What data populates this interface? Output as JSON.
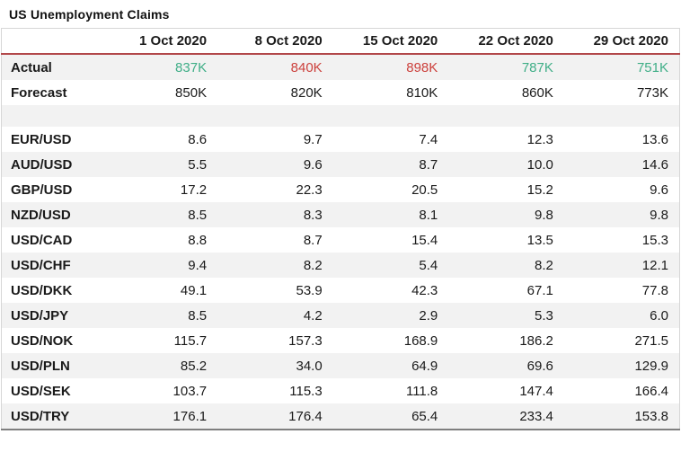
{
  "title": "US Unemployment Claims",
  "colors": {
    "green": "#3fae87",
    "red": "#cc403c",
    "header_rule": "#b2484a",
    "stripe": "#f2f2f2",
    "outer_border": "#d6d6d6",
    "bottom_border": "#7f7f7f",
    "text": "#1a1a1a"
  },
  "chart_data": {
    "type": "table",
    "title": "US Unemployment Claims",
    "columns": [
      "",
      "1 Oct 2020",
      "8 Oct 2020",
      "15 Oct 2020",
      "22 Oct 2020",
      "29 Oct 2020"
    ],
    "rows": [
      {
        "label": "Actual",
        "values": [
          "837K",
          "840K",
          "898K",
          "787K",
          "751K"
        ],
        "value_colors": [
          "green",
          "red",
          "red",
          "green",
          "green"
        ]
      },
      {
        "label": "Forecast",
        "values": [
          "850K",
          "820K",
          "810K",
          "860K",
          "773K"
        ]
      },
      {
        "label": "",
        "values": [
          "",
          "",
          "",
          "",
          ""
        ],
        "spacer": true
      },
      {
        "label": "EUR/USD",
        "values": [
          "8.6",
          "9.7",
          "7.4",
          "12.3",
          "13.6"
        ]
      },
      {
        "label": "AUD/USD",
        "values": [
          "5.5",
          "9.6",
          "8.7",
          "10.0",
          "14.6"
        ]
      },
      {
        "label": "GBP/USD",
        "values": [
          "17.2",
          "22.3",
          "20.5",
          "15.2",
          "9.6"
        ]
      },
      {
        "label": "NZD/USD",
        "values": [
          "8.5",
          "8.3",
          "8.1",
          "9.8",
          "9.8"
        ]
      },
      {
        "label": "USD/CAD",
        "values": [
          "8.8",
          "8.7",
          "15.4",
          "13.5",
          "15.3"
        ]
      },
      {
        "label": "USD/CHF",
        "values": [
          "9.4",
          "8.2",
          "5.4",
          "8.2",
          "12.1"
        ]
      },
      {
        "label": "USD/DKK",
        "values": [
          "49.1",
          "53.9",
          "42.3",
          "67.1",
          "77.8"
        ]
      },
      {
        "label": "USD/JPY",
        "values": [
          "8.5",
          "4.2",
          "2.9",
          "5.3",
          "6.0"
        ]
      },
      {
        "label": "USD/NOK",
        "values": [
          "115.7",
          "157.3",
          "168.9",
          "186.2",
          "271.5"
        ]
      },
      {
        "label": "USD/PLN",
        "values": [
          "85.2",
          "34.0",
          "64.9",
          "69.6",
          "129.9"
        ]
      },
      {
        "label": "USD/SEK",
        "values": [
          "103.7",
          "115.3",
          "111.8",
          "147.4",
          "166.4"
        ]
      },
      {
        "label": "USD/TRY",
        "values": [
          "176.1",
          "176.4",
          "65.4",
          "233.4",
          "153.8"
        ]
      }
    ]
  }
}
